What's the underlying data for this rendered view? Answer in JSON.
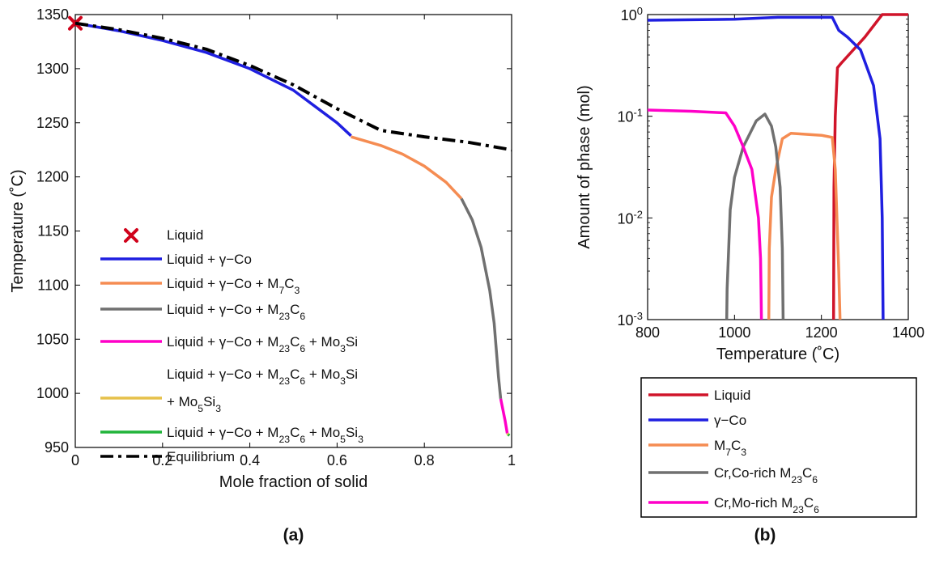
{
  "chart_data": [
    {
      "panel_label": "(a)",
      "type": "line",
      "xlabel": "Mole fraction of solid",
      "ylabel": "Temperature (˚C)",
      "xlim": [
        0,
        1
      ],
      "ylim": [
        950,
        1350
      ],
      "x_ticks": [
        0,
        0.2,
        0.4,
        0.6,
        0.8,
        1
      ],
      "x_tick_labels": [
        "0",
        "0.2",
        "0.4",
        "0.6",
        "0.8",
        "1"
      ],
      "y_ticks": [
        950,
        1000,
        1050,
        1100,
        1150,
        1200,
        1250,
        1300,
        1350
      ],
      "y_tick_labels": [
        "950",
        "1000",
        "1050",
        "1100",
        "1150",
        "1200",
        "1250",
        "1300",
        "1350"
      ],
      "grid": false,
      "legend_position": "lower-left",
      "series": [
        {
          "name": "Liquid",
          "color": "#d0021b",
          "style": "marker-x",
          "x": [
            0
          ],
          "y": [
            1342
          ]
        },
        {
          "name": "Liquid + γ−Co",
          "color": "#1f1fe0",
          "style": "solid",
          "x": [
            0,
            0.1,
            0.2,
            0.3,
            0.4,
            0.5,
            0.6,
            0.632
          ],
          "y": [
            1342,
            1335,
            1326,
            1315,
            1300,
            1280,
            1250,
            1238
          ]
        },
        {
          "name": "Liquid + γ−Co + M",
          "name_sub": "7",
          "name_mid": "C",
          "name_sub2": "3",
          "color": "#f58c52",
          "style": "solid",
          "x": [
            0.632,
            0.7,
            0.75,
            0.8,
            0.85,
            0.885
          ],
          "y": [
            1237,
            1229,
            1221,
            1210,
            1195,
            1180
          ]
        },
        {
          "name": "Liquid + γ−Co + M",
          "name_sub": "23",
          "name_mid": "C",
          "name_sub2": "6",
          "color": "#707070",
          "style": "solid",
          "x": [
            0.885,
            0.91,
            0.93,
            0.95,
            0.96,
            0.965,
            0.97,
            0.975
          ],
          "y": [
            1180,
            1160,
            1135,
            1095,
            1065,
            1040,
            1015,
            995
          ]
        },
        {
          "name": "Liquid + γ−Co + M",
          "name_sub": "23",
          "name_mid": "C",
          "name_sub2": "6",
          "name_tail": " + Mo",
          "name_sub3": "3",
          "name_tail2": "Si",
          "color": "#ff00c8",
          "style": "solid",
          "x": [
            0.975,
            0.98,
            0.985,
            0.99
          ],
          "y": [
            995,
            985,
            975,
            963
          ]
        },
        {
          "name": "Liquid + γ−Co + M",
          "name_sub": "23",
          "name_mid": "C",
          "name_sub2": "6",
          "name_tail": " + Mo",
          "name_sub3": "3",
          "name_tail2": "Si",
          "name_line2": " + Mo",
          "name_line2_sub": "5",
          "name_line2_tail": "Si",
          "name_line2_sub2": "3",
          "color": "#e6c14a",
          "style": "solid",
          "x": [
            0.99,
            0.992
          ],
          "y": [
            963,
            962
          ]
        },
        {
          "name": "Liquid + γ−Co + M",
          "name_sub": "23",
          "name_mid": "C",
          "name_sub2": "6",
          "name_tail": " + Mo",
          "name_sub3": "5",
          "name_tail2": "Si",
          "name_sub4": "3",
          "color": "#21b43a",
          "style": "solid",
          "x": [
            0.992,
            0.995
          ],
          "y": [
            962,
            961
          ]
        },
        {
          "name": "Equilibrium",
          "color": "#000000",
          "style": "dashdot",
          "x": [
            0,
            0.1,
            0.2,
            0.3,
            0.4,
            0.5,
            0.6,
            0.7,
            0.8,
            0.9,
            1.0
          ],
          "y": [
            1342,
            1336,
            1328,
            1318,
            1303,
            1285,
            1263,
            1243,
            1237,
            1232,
            1225
          ]
        }
      ]
    },
    {
      "panel_label": "(b)",
      "type": "line",
      "xlabel": "Temperature (˚C)",
      "ylabel": "Amount of phase (mol)",
      "xlim": [
        800,
        1400
      ],
      "ylim": [
        0.001,
        1
      ],
      "y_scale": "log",
      "x_ticks": [
        800,
        1000,
        1200,
        1400
      ],
      "x_tick_labels": [
        "800",
        "1000",
        "1200",
        "1400"
      ],
      "y_ticks": [
        0.001,
        0.01,
        0.1,
        1
      ],
      "y_tick_base": "10",
      "y_tick_exponents": [
        "-3",
        "-2",
        "-1",
        "0"
      ],
      "grid": false,
      "legend_position": "below",
      "series": [
        {
          "name": "Liquid",
          "color": "#d0142a",
          "x": [
            1228,
            1229,
            1232,
            1237,
            1245,
            1300,
            1340,
            1400
          ],
          "y": [
            0.001,
            0.02,
            0.1,
            0.3,
            0.33,
            0.6,
            1.0,
            1.0
          ]
        },
        {
          "name": "γ−Co",
          "color": "#1f1fe0",
          "x": [
            800,
            1000,
            1100,
            1200,
            1225,
            1240,
            1260,
            1290,
            1320,
            1335,
            1340,
            1342
          ],
          "y": [
            0.88,
            0.9,
            0.94,
            0.94,
            0.94,
            0.7,
            0.6,
            0.45,
            0.2,
            0.06,
            0.01,
            0.001
          ]
        },
        {
          "name": "M",
          "name_sub": "7",
          "name_tail": "C",
          "name_sub2": "3",
          "color": "#f58c52",
          "x": [
            1079,
            1080,
            1085,
            1095,
            1110,
            1130,
            1200,
            1225,
            1232,
            1240,
            1243
          ],
          "y": [
            0.001,
            0.005,
            0.016,
            0.03,
            0.06,
            0.068,
            0.065,
            0.062,
            0.03,
            0.003,
            0.001
          ]
        },
        {
          "name": "Cr,Co-rich M",
          "name_sub": "23",
          "name_tail": "C",
          "name_sub2": "6",
          "color": "#707070",
          "x": [
            982,
            983,
            990,
            1000,
            1020,
            1050,
            1070,
            1085,
            1095,
            1105,
            1110,
            1112
          ],
          "y": [
            0.001,
            0.002,
            0.012,
            0.025,
            0.05,
            0.09,
            0.105,
            0.08,
            0.05,
            0.02,
            0.005,
            0.001
          ]
        },
        {
          "name": "Cr,Mo-rich M",
          "name_sub": "23",
          "name_tail": "C",
          "name_sub2": "6",
          "color": "#ff00c8",
          "x": [
            800,
            900,
            980,
            1000,
            1020,
            1040,
            1055,
            1060,
            1061,
            1062
          ],
          "y": [
            0.115,
            0.112,
            0.108,
            0.08,
            0.05,
            0.03,
            0.01,
            0.004,
            0.002,
            0.001
          ]
        }
      ]
    }
  ]
}
